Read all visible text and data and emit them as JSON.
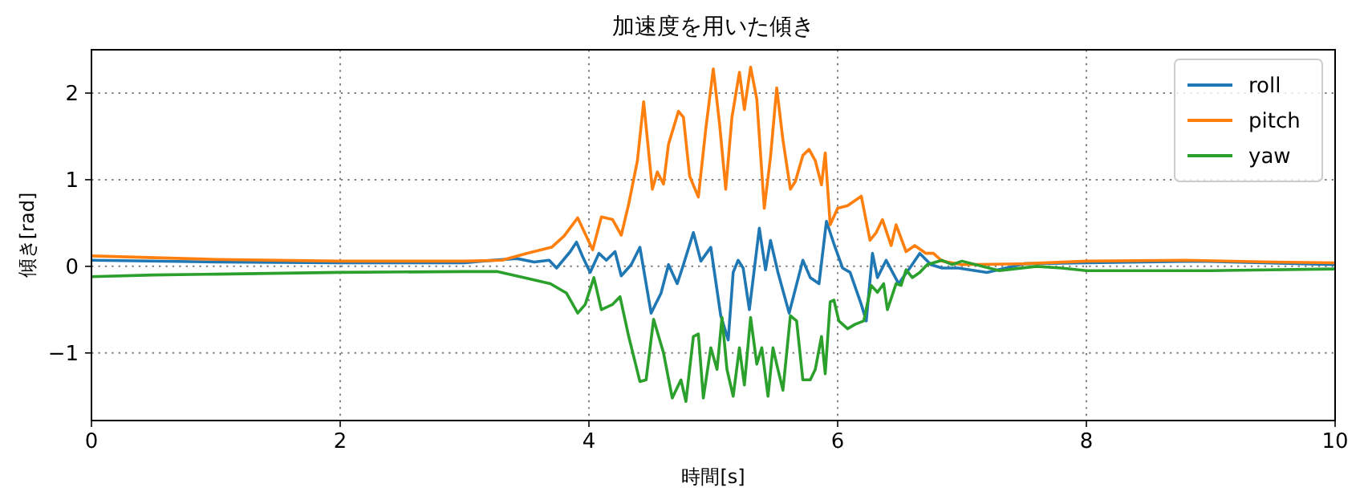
{
  "chart_data": {
    "type": "line",
    "title": "加速度を用いた傾き",
    "xlabel": "時間[s]",
    "ylabel": "傾き[rad]",
    "xlim": [
      0,
      10
    ],
    "ylim": [
      -1.78,
      2.5
    ],
    "xticks": [
      0,
      2,
      4,
      6,
      8,
      10
    ],
    "yticks": [
      -1,
      0,
      1,
      2
    ],
    "grid": true,
    "legend": "top right",
    "series": [
      {
        "name": "roll",
        "color": "#1f77b4",
        "x": [
          0,
          1,
          2,
          3,
          3.14,
          3.42,
          3.56,
          3.68,
          3.74,
          3.85,
          3.9,
          3.95,
          4.01,
          4.08,
          4.14,
          4.21,
          4.26,
          4.34,
          4.41,
          4.5,
          4.58,
          4.64,
          4.71,
          4.76,
          4.84,
          4.9,
          4.98,
          5.06,
          5.12,
          5.16,
          5.2,
          5.24,
          5.29,
          5.37,
          5.42,
          5.46,
          5.52,
          5.61,
          5.72,
          5.78,
          5.85,
          5.91,
          5.97,
          6.04,
          6.1,
          6.19,
          6.23,
          6.28,
          6.32,
          6.39,
          6.49,
          6.58,
          6.66,
          6.75,
          6.84,
          6.97,
          7.2,
          7.5,
          8,
          8.9,
          10
        ],
        "values": [
          0.07,
          0.05,
          0.04,
          0.04,
          0.06,
          0.09,
          0.05,
          0.07,
          -0.02,
          0.17,
          0.28,
          0.11,
          -0.07,
          0.15,
          0.07,
          0.17,
          -0.11,
          0.02,
          0.22,
          -0.54,
          -0.31,
          0.02,
          -0.2,
          0.02,
          0.39,
          0.06,
          0.22,
          -0.57,
          -0.85,
          -0.07,
          0.07,
          -0.02,
          -0.5,
          0.44,
          -0.04,
          0.3,
          -0.07,
          -0.54,
          0.07,
          -0.13,
          -0.2,
          0.52,
          0.26,
          -0.02,
          -0.07,
          -0.44,
          -0.63,
          0.15,
          -0.13,
          0.07,
          -0.2,
          -0.02,
          0.15,
          0.02,
          -0.02,
          -0.02,
          -0.07,
          0.03,
          0.04,
          0.06,
          0.02
        ]
      },
      {
        "name": "pitch",
        "color": "#ff7f0e",
        "x": [
          0,
          1,
          2,
          3,
          3.3,
          3.5,
          3.7,
          3.8,
          3.91,
          4.03,
          4.1,
          4.19,
          4.26,
          4.32,
          4.39,
          4.44,
          4.51,
          4.55,
          4.6,
          4.64,
          4.72,
          4.76,
          4.81,
          4.88,
          4.94,
          5.0,
          5.05,
          5.1,
          5.15,
          5.21,
          5.25,
          5.3,
          5.35,
          5.41,
          5.46,
          5.51,
          5.56,
          5.62,
          5.66,
          5.72,
          5.77,
          5.82,
          5.87,
          5.9,
          5.94,
          6.0,
          6.08,
          6.19,
          6.26,
          6.31,
          6.36,
          6.43,
          6.47,
          6.55,
          6.62,
          6.71,
          6.77,
          6.84,
          7.0,
          7.5,
          8,
          8.8,
          9.5,
          10
        ],
        "values": [
          0.12,
          0.08,
          0.06,
          0.06,
          0.07,
          0.15,
          0.22,
          0.35,
          0.56,
          0.19,
          0.57,
          0.54,
          0.36,
          0.72,
          1.22,
          1.9,
          0.89,
          1.09,
          0.95,
          1.41,
          1.79,
          1.72,
          1.04,
          0.8,
          1.59,
          2.28,
          1.65,
          0.89,
          1.72,
          2.24,
          1.81,
          2.3,
          1.93,
          0.67,
          1.26,
          2.06,
          1.46,
          0.89,
          0.98,
          1.28,
          1.35,
          1.22,
          0.94,
          1.31,
          0.48,
          0.67,
          0.7,
          0.81,
          0.3,
          0.39,
          0.54,
          0.24,
          0.48,
          0.17,
          0.24,
          0.15,
          0.15,
          0.06,
          0.02,
          0.03,
          0.06,
          0.07,
          0.05,
          0.04
        ]
      },
      {
        "name": "yaw",
        "color": "#2ca02c",
        "x": [
          0,
          0.5,
          1,
          2,
          3,
          3.26,
          3.48,
          3.69,
          3.82,
          3.91,
          3.97,
          4.04,
          4.1,
          4.19,
          4.25,
          4.32,
          4.41,
          4.46,
          4.52,
          4.6,
          4.67,
          4.74,
          4.78,
          4.84,
          4.88,
          4.92,
          4.98,
          5.03,
          5.07,
          5.11,
          5.16,
          5.21,
          5.25,
          5.3,
          5.35,
          5.39,
          5.44,
          5.48,
          5.51,
          5.56,
          5.62,
          5.67,
          5.72,
          5.78,
          5.82,
          5.87,
          5.9,
          5.94,
          5.97,
          6.01,
          6.08,
          6.14,
          6.21,
          6.27,
          6.32,
          6.37,
          6.4,
          6.47,
          6.51,
          6.55,
          6.6,
          6.66,
          6.72,
          6.84,
          6.92,
          7.0,
          7.3,
          7.6,
          7.8,
          8.0,
          9,
          10
        ],
        "values": [
          -0.12,
          -0.1,
          -0.09,
          -0.07,
          -0.06,
          -0.06,
          -0.13,
          -0.2,
          -0.31,
          -0.54,
          -0.44,
          -0.13,
          -0.5,
          -0.44,
          -0.35,
          -0.81,
          -1.33,
          -1.31,
          -0.61,
          -1.0,
          -1.52,
          -1.31,
          -1.56,
          -0.81,
          -0.78,
          -1.52,
          -0.94,
          -1.19,
          -0.59,
          -1.19,
          -1.5,
          -0.94,
          -1.37,
          -0.59,
          -1.13,
          -0.94,
          -1.5,
          -0.94,
          -1.13,
          -1.43,
          -0.57,
          -0.63,
          -1.31,
          -1.31,
          -1.19,
          -0.81,
          -1.24,
          -0.41,
          -0.39,
          -0.63,
          -0.72,
          -0.67,
          -0.63,
          -0.22,
          -0.3,
          -0.2,
          -0.5,
          -0.2,
          -0.22,
          -0.04,
          -0.13,
          -0.07,
          0.02,
          0.07,
          0.02,
          0.06,
          -0.05,
          0.0,
          -0.02,
          -0.05,
          -0.05,
          -0.03
        ]
      }
    ]
  }
}
